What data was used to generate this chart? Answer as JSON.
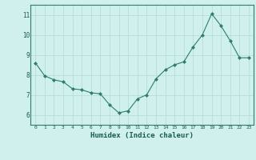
{
  "x": [
    0,
    1,
    2,
    3,
    4,
    5,
    6,
    7,
    8,
    9,
    10,
    11,
    12,
    13,
    14,
    15,
    16,
    17,
    18,
    19,
    20,
    21,
    22,
    23
  ],
  "y": [
    8.6,
    7.95,
    7.75,
    7.65,
    7.3,
    7.25,
    7.1,
    7.05,
    6.5,
    6.1,
    6.2,
    6.8,
    7.0,
    7.8,
    8.25,
    8.5,
    8.65,
    9.4,
    10.0,
    11.05,
    10.45,
    9.7,
    8.85,
    8.85
  ],
  "xlabel": "Humidex (Indice chaleur)",
  "ylim": [
    5.5,
    11.5
  ],
  "xlim": [
    -0.5,
    23.5
  ],
  "yticks": [
    6,
    7,
    8,
    9,
    10,
    11
  ],
  "xticks": [
    0,
    1,
    2,
    3,
    4,
    5,
    6,
    7,
    8,
    9,
    10,
    11,
    12,
    13,
    14,
    15,
    16,
    17,
    18,
    19,
    20,
    21,
    22,
    23
  ],
  "line_color": "#2e7d6e",
  "marker_color": "#2e7d6e",
  "bg_color": "#cff0ec",
  "grid_color": "#b8ddd8",
  "axis_label_color": "#1a5c50",
  "tick_label_color": "#1a5c50",
  "border_color": "#2e7d6e",
  "fig_width": 3.2,
  "fig_height": 2.0,
  "dpi": 100
}
